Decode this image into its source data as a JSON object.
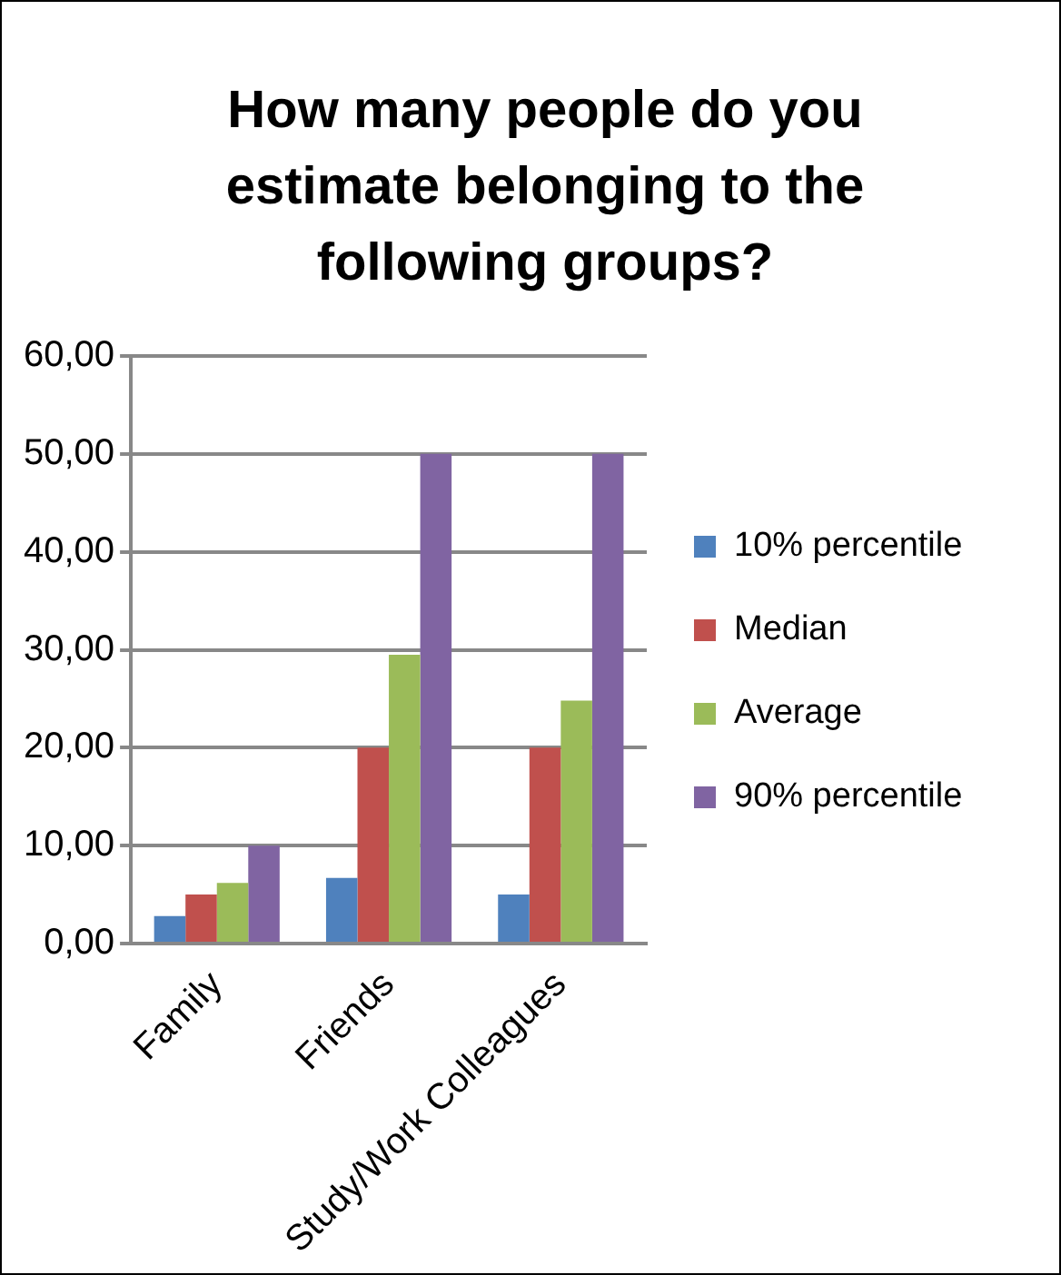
{
  "chart_data": {
    "type": "bar",
    "title": "How many people do you estimate belonging to the following groups?",
    "categories": [
      "Family",
      "Friends",
      "Study/Work Colleagues"
    ],
    "series": [
      {
        "name": "10% percentile",
        "color": "#4f81bd",
        "values": [
          2.8,
          6.7,
          5
        ]
      },
      {
        "name": "Median",
        "color": "#c0504d",
        "values": [
          5,
          20,
          20
        ]
      },
      {
        "name": "Average",
        "color": "#9bbb59",
        "values": [
          6.2,
          29.5,
          24.8
        ]
      },
      {
        "name": "90% percentile",
        "color": "#8064a2",
        "values": [
          10,
          50,
          50
        ]
      }
    ],
    "ylim": [
      0,
      60
    ],
    "yticks": [
      {
        "value": 0,
        "label": "0,00"
      },
      {
        "value": 10,
        "label": "10,00"
      },
      {
        "value": 20,
        "label": "20,00"
      },
      {
        "value": 30,
        "label": "30,00"
      },
      {
        "value": 40,
        "label": "40,00"
      },
      {
        "value": 50,
        "label": "50,00"
      },
      {
        "value": 60,
        "label": "60,00"
      }
    ],
    "grid": "y",
    "legend": "right"
  }
}
